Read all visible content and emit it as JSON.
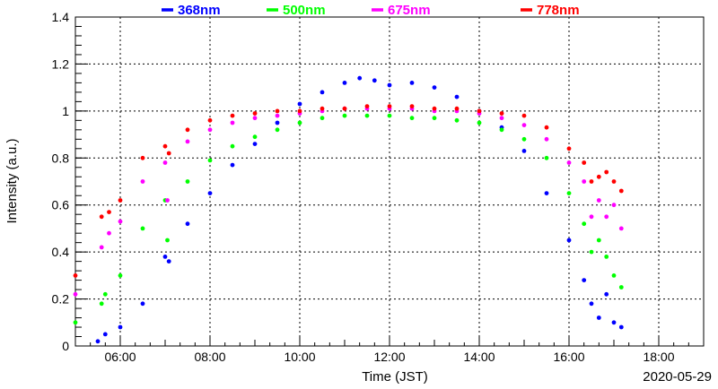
{
  "chart_data": {
    "type": "scatter",
    "xlabel": "Time (JST)",
    "ylabel": "Intensity (a.u.)",
    "date_label": "2020-05-29",
    "xlim": [
      "05:00",
      "19:00"
    ],
    "ylim": [
      0,
      1.4
    ],
    "grid": true,
    "legend_placement": "top",
    "x_ticks": [
      "06:00",
      "08:00",
      "10:00",
      "12:00",
      "14:00",
      "16:00",
      "18:00"
    ],
    "y_ticks": [
      "0",
      "0.2",
      "0.4",
      "0.6",
      "0.8",
      "1",
      "1.2",
      "1.4"
    ],
    "series": [
      {
        "name": "368nm",
        "color": "#0000ff",
        "points": [
          [
            "05:30",
            0.02
          ],
          [
            "05:40",
            0.05
          ],
          [
            "06:00",
            0.08
          ],
          [
            "06:30",
            0.18
          ],
          [
            "07:00",
            0.38
          ],
          [
            "07:05",
            0.36
          ],
          [
            "07:30",
            0.52
          ],
          [
            "08:00",
            0.65
          ],
          [
            "08:30",
            0.77
          ],
          [
            "09:00",
            0.86
          ],
          [
            "09:30",
            0.95
          ],
          [
            "10:00",
            1.03
          ],
          [
            "10:30",
            1.08
          ],
          [
            "11:00",
            1.12
          ],
          [
            "11:20",
            1.14
          ],
          [
            "11:40",
            1.13
          ],
          [
            "12:00",
            1.11
          ],
          [
            "12:30",
            1.12
          ],
          [
            "13:00",
            1.1
          ],
          [
            "13:30",
            1.06
          ],
          [
            "14:00",
            1.0
          ],
          [
            "14:30",
            0.93
          ],
          [
            "15:00",
            0.83
          ],
          [
            "15:30",
            0.65
          ],
          [
            "16:00",
            0.45
          ],
          [
            "16:20",
            0.28
          ],
          [
            "16:30",
            0.18
          ],
          [
            "16:40",
            0.12
          ],
          [
            "16:50",
            0.22
          ],
          [
            "17:00",
            0.1
          ],
          [
            "17:10",
            0.08
          ]
        ]
      },
      {
        "name": "500nm",
        "color": "#00ff00",
        "points": [
          [
            "05:00",
            0.1
          ],
          [
            "05:35",
            0.18
          ],
          [
            "05:40",
            0.22
          ],
          [
            "06:00",
            0.3
          ],
          [
            "06:30",
            0.5
          ],
          [
            "07:00",
            0.62
          ],
          [
            "07:03",
            0.45
          ],
          [
            "07:30",
            0.7
          ],
          [
            "08:00",
            0.79
          ],
          [
            "08:30",
            0.85
          ],
          [
            "09:00",
            0.89
          ],
          [
            "09:30",
            0.92
          ],
          [
            "10:00",
            0.95
          ],
          [
            "10:30",
            0.97
          ],
          [
            "11:00",
            0.98
          ],
          [
            "11:30",
            0.98
          ],
          [
            "12:00",
            0.98
          ],
          [
            "12:30",
            0.97
          ],
          [
            "13:00",
            0.97
          ],
          [
            "13:30",
            0.96
          ],
          [
            "14:00",
            0.95
          ],
          [
            "14:30",
            0.92
          ],
          [
            "15:00",
            0.88
          ],
          [
            "15:30",
            0.8
          ],
          [
            "16:00",
            0.65
          ],
          [
            "16:20",
            0.52
          ],
          [
            "16:30",
            0.4
          ],
          [
            "16:40",
            0.45
          ],
          [
            "16:50",
            0.38
          ],
          [
            "17:00",
            0.3
          ],
          [
            "17:10",
            0.25
          ]
        ]
      },
      {
        "name": "675nm",
        "color": "#ff00ff",
        "points": [
          [
            "05:00",
            0.22
          ],
          [
            "05:35",
            0.42
          ],
          [
            "05:45",
            0.48
          ],
          [
            "06:00",
            0.53
          ],
          [
            "06:30",
            0.7
          ],
          [
            "07:00",
            0.78
          ],
          [
            "07:03",
            0.62
          ],
          [
            "07:30",
            0.87
          ],
          [
            "08:00",
            0.92
          ],
          [
            "08:30",
            0.95
          ],
          [
            "09:00",
            0.97
          ],
          [
            "09:30",
            0.98
          ],
          [
            "10:00",
            0.99
          ],
          [
            "10:30",
            1.0
          ],
          [
            "11:00",
            1.01
          ],
          [
            "11:30",
            1.01
          ],
          [
            "12:00",
            1.01
          ],
          [
            "12:30",
            1.01
          ],
          [
            "13:00",
            1.0
          ],
          [
            "13:30",
            1.0
          ],
          [
            "14:00",
            0.99
          ],
          [
            "14:30",
            0.97
          ],
          [
            "15:00",
            0.94
          ],
          [
            "15:30",
            0.88
          ],
          [
            "16:00",
            0.78
          ],
          [
            "16:20",
            0.7
          ],
          [
            "16:30",
            0.55
          ],
          [
            "16:40",
            0.62
          ],
          [
            "16:50",
            0.55
          ],
          [
            "17:00",
            0.6
          ],
          [
            "17:10",
            0.5
          ]
        ]
      },
      {
        "name": "778nm",
        "color": "#ff0000",
        "points": [
          [
            "05:00",
            0.3
          ],
          [
            "05:35",
            0.55
          ],
          [
            "05:45",
            0.57
          ],
          [
            "06:00",
            0.62
          ],
          [
            "06:30",
            0.8
          ],
          [
            "07:00",
            0.85
          ],
          [
            "07:05",
            0.82
          ],
          [
            "07:30",
            0.92
          ],
          [
            "08:00",
            0.96
          ],
          [
            "08:30",
            0.98
          ],
          [
            "09:00",
            0.99
          ],
          [
            "09:30",
            1.0
          ],
          [
            "10:00",
            1.0
          ],
          [
            "10:30",
            1.01
          ],
          [
            "11:00",
            1.01
          ],
          [
            "11:30",
            1.02
          ],
          [
            "12:00",
            1.02
          ],
          [
            "12:30",
            1.02
          ],
          [
            "13:00",
            1.01
          ],
          [
            "13:30",
            1.01
          ],
          [
            "14:00",
            1.0
          ],
          [
            "14:30",
            0.99
          ],
          [
            "15:00",
            0.98
          ],
          [
            "15:30",
            0.93
          ],
          [
            "16:00",
            0.84
          ],
          [
            "16:20",
            0.78
          ],
          [
            "16:30",
            0.7
          ],
          [
            "16:40",
            0.72
          ],
          [
            "16:50",
            0.74
          ],
          [
            "17:00",
            0.7
          ],
          [
            "17:10",
            0.66
          ]
        ]
      }
    ]
  }
}
